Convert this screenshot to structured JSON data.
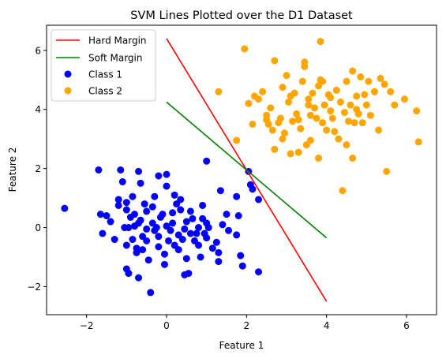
{
  "chart_data": {
    "type": "scatter",
    "title": "SVM Lines Plotted over the D1 Dataset",
    "xlabel": "Feature 1",
    "ylabel": "Feature 2",
    "xlim": [
      -3.0,
      6.75
    ],
    "ylim": [
      -2.95,
      6.85
    ],
    "xticks": [
      -2,
      0,
      2,
      4,
      6
    ],
    "yticks": [
      -2,
      0,
      2,
      4,
      6
    ],
    "xtick_labels": [
      "−2",
      "0",
      "2",
      "4",
      "6"
    ],
    "ytick_labels": [
      "−2",
      "0",
      "2",
      "4",
      "6"
    ],
    "grid": false,
    "legend_position": "top-left",
    "lines": [
      {
        "name": "Hard Margin",
        "color": "#ff0000",
        "x": [
          0,
          4
        ],
        "y": [
          6.4,
          -2.5
        ]
      },
      {
        "name": "Soft Margin",
        "color": "#008000",
        "x": [
          0,
          4
        ],
        "y": [
          4.25,
          -0.35
        ]
      }
    ],
    "series": [
      {
        "name": "Class 1",
        "color": "#0000ff",
        "points": [
          [
            -2.55,
            0.65
          ],
          [
            -1.7,
            1.95
          ],
          [
            -1.65,
            0.45
          ],
          [
            -1.6,
            -0.2
          ],
          [
            -1.5,
            0.4
          ],
          [
            -1.4,
            0.2
          ],
          [
            -1.3,
            -0.4
          ],
          [
            -1.2,
            0.95
          ],
          [
            -1.2,
            0.75
          ],
          [
            -1.15,
            1.95
          ],
          [
            -1.1,
            1.55
          ],
          [
            -1.05,
            0.0
          ],
          [
            -1.0,
            0.85
          ],
          [
            -1.0,
            0.6
          ],
          [
            -1.0,
            -0.6
          ],
          [
            -1.0,
            -1.4
          ],
          [
            -0.95,
            -1.55
          ],
          [
            -0.9,
            0.35
          ],
          [
            -0.85,
            -0.4
          ],
          [
            -0.85,
            1.05
          ],
          [
            -0.8,
            0.05
          ],
          [
            -0.8,
            0.45
          ],
          [
            -0.75,
            -0.7
          ],
          [
            -0.75,
            -0.85
          ],
          [
            -0.7,
            1.9
          ],
          [
            -0.7,
            0.15
          ],
          [
            -0.7,
            -1.7
          ],
          [
            -0.65,
            1.5
          ],
          [
            -0.65,
            0.25
          ],
          [
            -0.6,
            -0.3
          ],
          [
            -0.6,
            -0.75
          ],
          [
            -0.55,
            0.8
          ],
          [
            -0.5,
            0.55
          ],
          [
            -0.5,
            -0.05
          ],
          [
            -0.5,
            -0.45
          ],
          [
            -0.45,
            -1.1
          ],
          [
            -0.4,
            -2.2
          ],
          [
            -0.35,
            0.7
          ],
          [
            -0.35,
            0.15
          ],
          [
            -0.3,
            -0.1
          ],
          [
            -0.3,
            1.05
          ],
          [
            -0.25,
            0.0
          ],
          [
            -0.2,
            -0.3
          ],
          [
            -0.2,
            -0.65
          ],
          [
            -0.2,
            1.75
          ],
          [
            -0.15,
            0.35
          ],
          [
            -0.1,
            0.45
          ],
          [
            -0.05,
            -0.9
          ],
          [
            -0.05,
            -1.25
          ],
          [
            0.0,
            0.05
          ],
          [
            0.0,
            1.8
          ],
          [
            0.0,
            1.4
          ],
          [
            0.05,
            -0.45
          ],
          [
            0.1,
            -0.1
          ],
          [
            0.15,
            0.5
          ],
          [
            0.15,
            0.15
          ],
          [
            0.2,
            -0.6
          ],
          [
            0.2,
            1.1
          ],
          [
            0.25,
            0.8
          ],
          [
            0.3,
            -0.25
          ],
          [
            0.3,
            -0.75
          ],
          [
            0.35,
            0.6
          ],
          [
            0.35,
            0.95
          ],
          [
            0.4,
            -0.4
          ],
          [
            0.45,
            -0.05
          ],
          [
            0.5,
            0.2
          ],
          [
            0.5,
            -1.05
          ],
          [
            0.55,
            -1.55
          ],
          [
            0.6,
            -0.2
          ],
          [
            0.6,
            0.55
          ],
          [
            0.65,
            0.3
          ],
          [
            0.7,
            -0.45
          ],
          [
            0.75,
            -0.2
          ],
          [
            0.8,
            -0.6
          ],
          [
            0.8,
            0.0
          ],
          [
            0.85,
            -1.0
          ],
          [
            0.9,
            0.75
          ],
          [
            0.9,
            0.3
          ],
          [
            0.95,
            -0.2
          ],
          [
            1.0,
            0.15
          ],
          [
            1.0,
            -0.35
          ],
          [
            1.0,
            2.25
          ],
          [
            1.05,
            0.0
          ],
          [
            1.15,
            -0.7
          ],
          [
            1.25,
            -0.5
          ],
          [
            1.3,
            -0.85
          ],
          [
            1.35,
            1.25
          ],
          [
            1.4,
            0.1
          ],
          [
            1.5,
            0.45
          ],
          [
            1.55,
            -0.1
          ],
          [
            1.75,
            1.05
          ],
          [
            1.75,
            -0.25
          ],
          [
            1.8,
            0.4
          ],
          [
            1.85,
            -0.95
          ],
          [
            1.9,
            -1.3
          ],
          [
            2.05,
            1.9
          ],
          [
            2.1,
            1.45
          ],
          [
            2.15,
            1.3
          ],
          [
            2.3,
            0.95
          ],
          [
            2.3,
            -1.5
          ],
          [
            0.45,
            -1.6
          ],
          [
            -0.95,
            0.0
          ],
          [
            1.3,
            -1.15
          ]
        ]
      },
      {
        "name": "Class 2",
        "color": "#ffa500",
        "points": [
          [
            1.3,
            4.6
          ],
          [
            1.75,
            2.95
          ],
          [
            1.95,
            6.05
          ],
          [
            2.05,
            4.2
          ],
          [
            2.15,
            3.5
          ],
          [
            2.2,
            4.45
          ],
          [
            2.3,
            4.35
          ],
          [
            2.4,
            4.6
          ],
          [
            2.5,
            3.8
          ],
          [
            2.55,
            3.5
          ],
          [
            2.6,
            4.05
          ],
          [
            2.65,
            3.3
          ],
          [
            2.7,
            2.65
          ],
          [
            2.7,
            5.65
          ],
          [
            2.8,
            3.55
          ],
          [
            2.85,
            3.7
          ],
          [
            2.9,
            4.75
          ],
          [
            2.95,
            3.2
          ],
          [
            3.0,
            5.15
          ],
          [
            3.05,
            4.25
          ],
          [
            3.1,
            2.5
          ],
          [
            3.15,
            3.6
          ],
          [
            3.2,
            4.55
          ],
          [
            3.25,
            3.85
          ],
          [
            3.3,
            2.55
          ],
          [
            3.35,
            3.35
          ],
          [
            3.4,
            4.95
          ],
          [
            3.45,
            5.45
          ],
          [
            3.45,
            5.6
          ],
          [
            3.5,
            2.8
          ],
          [
            3.55,
            4.35
          ],
          [
            3.6,
            3.8
          ],
          [
            3.65,
            4.55
          ],
          [
            3.7,
            4.05
          ],
          [
            3.75,
            3.7
          ],
          [
            3.8,
            2.35
          ],
          [
            3.85,
            5.0
          ],
          [
            3.9,
            4.95
          ],
          [
            3.9,
            3.55
          ],
          [
            3.95,
            4.15
          ],
          [
            4.0,
            3.3
          ],
          [
            4.05,
            4.5
          ],
          [
            4.1,
            3.95
          ],
          [
            4.15,
            3.7
          ],
          [
            4.2,
            3.25
          ],
          [
            4.25,
            4.65
          ],
          [
            4.3,
            3.0
          ],
          [
            4.35,
            4.25
          ],
          [
            4.4,
            1.25
          ],
          [
            4.45,
            3.9
          ],
          [
            4.5,
            4.95
          ],
          [
            4.55,
            3.6
          ],
          [
            4.6,
            4.15
          ],
          [
            4.65,
            2.35
          ],
          [
            4.7,
            3.55
          ],
          [
            4.75,
            4.45
          ],
          [
            4.8,
            3.85
          ],
          [
            4.85,
            5.1
          ],
          [
            4.9,
            3.55
          ],
          [
            4.95,
            4.5
          ],
          [
            5.0,
            4.15
          ],
          [
            5.05,
            4.95
          ],
          [
            5.1,
            3.8
          ],
          [
            5.2,
            4.6
          ],
          [
            5.3,
            3.3
          ],
          [
            5.35,
            5.05
          ],
          [
            5.45,
            4.85
          ],
          [
            5.5,
            1.9
          ],
          [
            5.6,
            4.6
          ],
          [
            5.7,
            4.15
          ],
          [
            5.95,
            4.35
          ],
          [
            6.25,
            3.95
          ],
          [
            6.3,
            2.9
          ],
          [
            3.85,
            6.3
          ],
          [
            4.65,
            5.3
          ],
          [
            3.1,
            4.45
          ],
          [
            2.9,
            3.0
          ],
          [
            4.1,
            4.4
          ],
          [
            3.6,
            2.95
          ],
          [
            4.5,
            2.8
          ],
          [
            3.3,
            3.65
          ],
          [
            3.8,
            4.8
          ],
          [
            4.75,
            4.0
          ],
          [
            2.5,
            3.65
          ],
          [
            3.55,
            4.15
          ]
        ]
      }
    ]
  }
}
